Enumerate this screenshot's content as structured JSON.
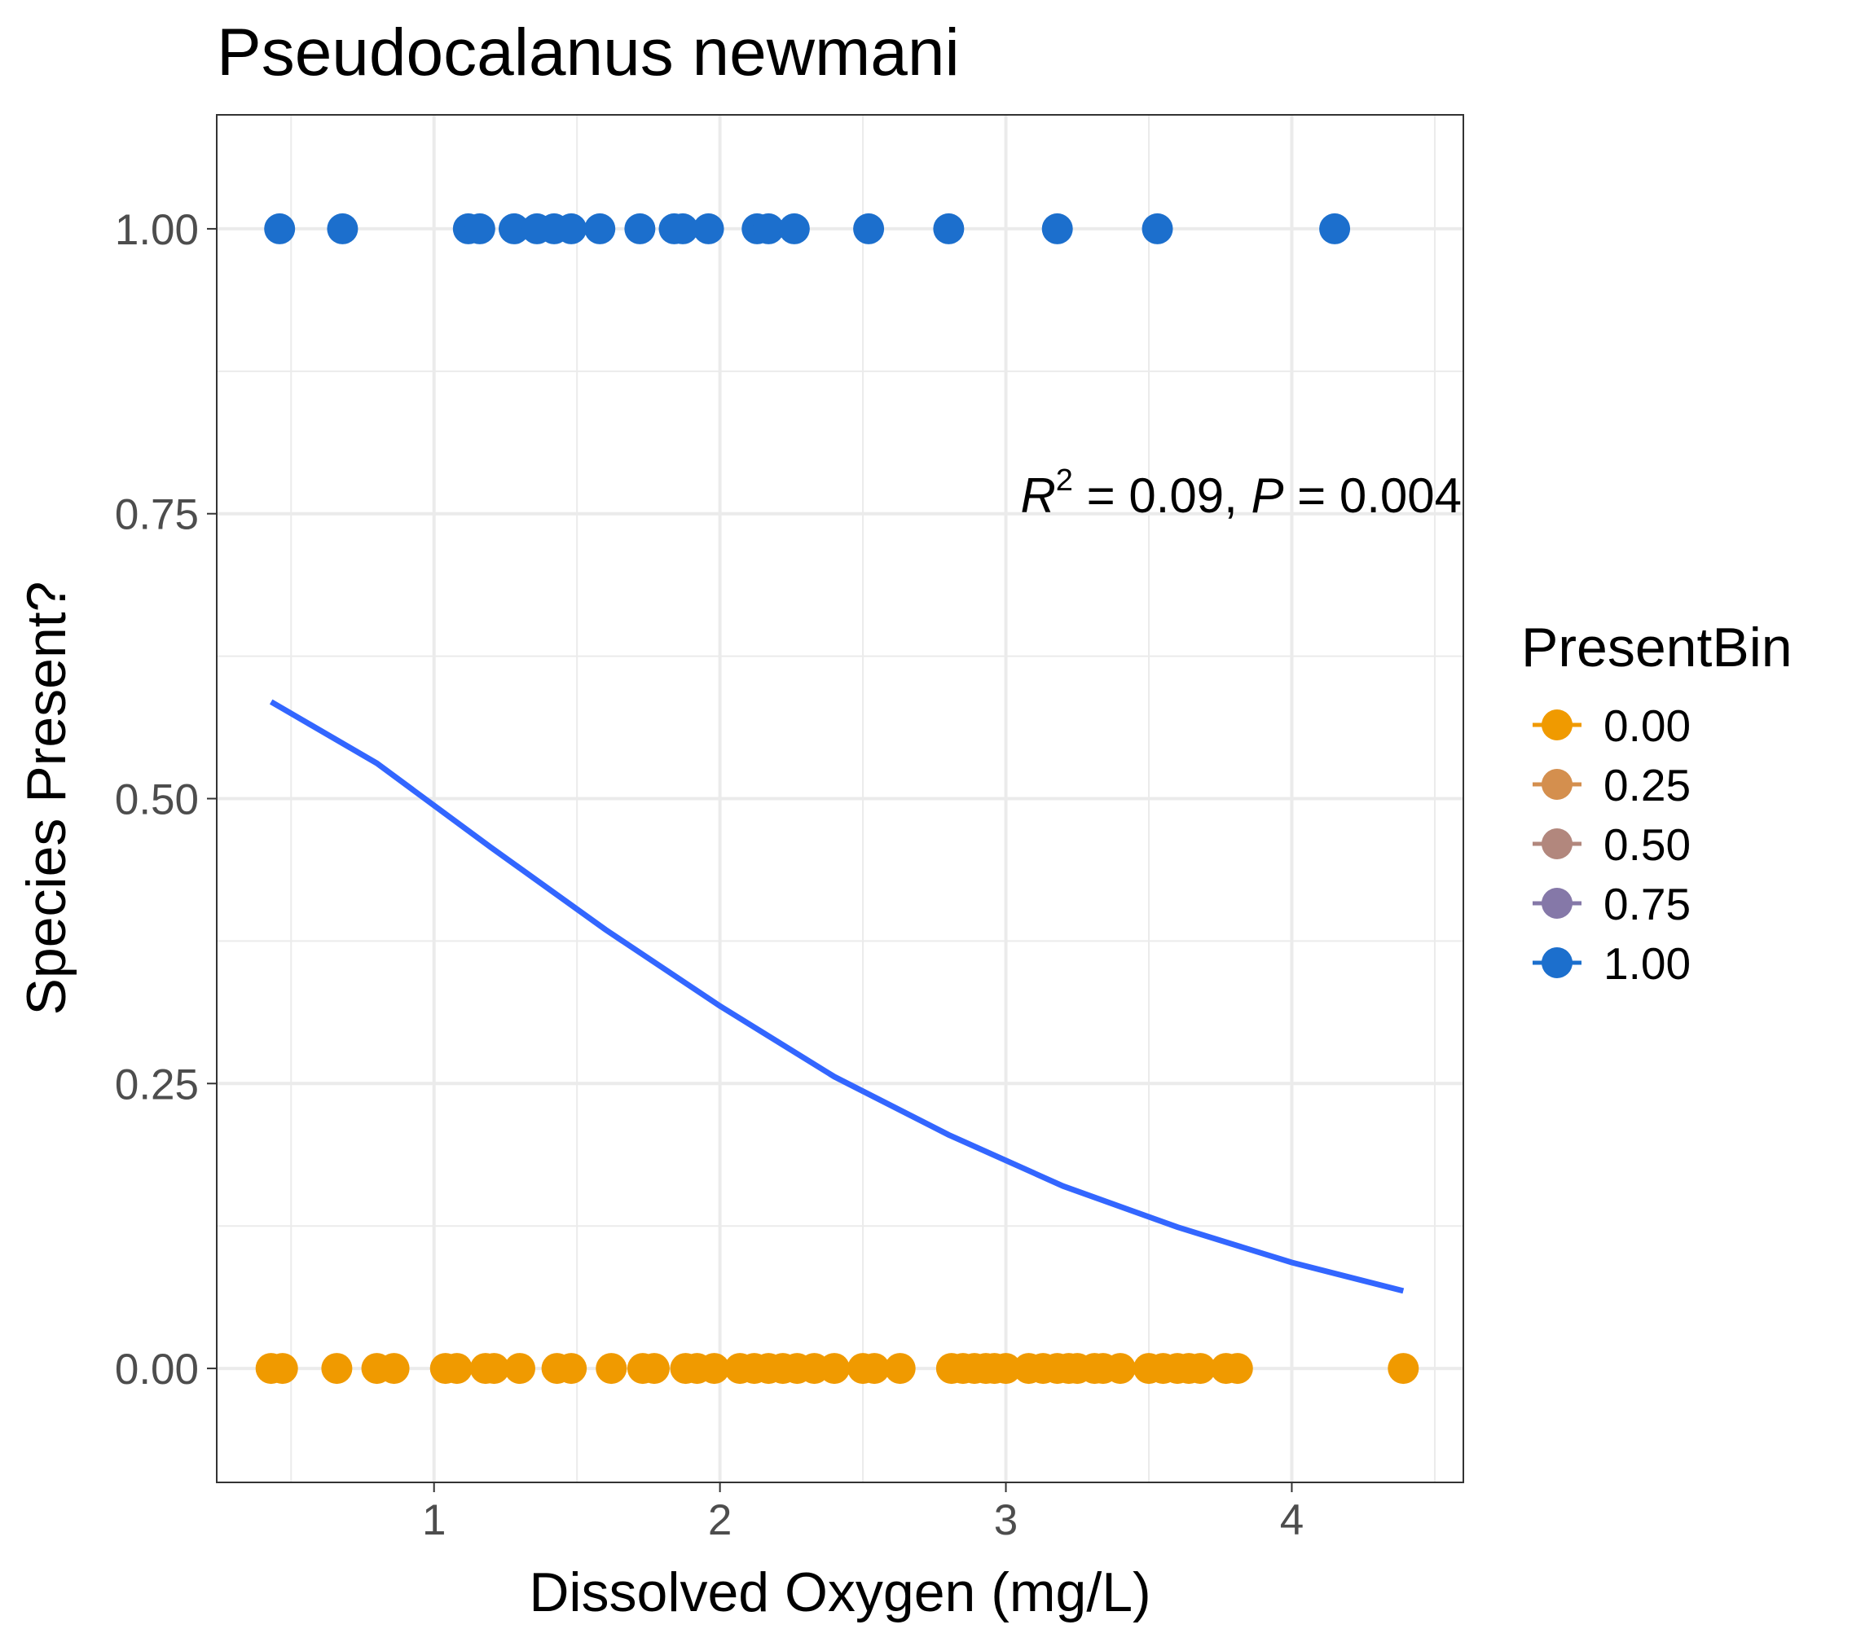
{
  "chart_data": {
    "type": "scatter",
    "title": "Pseudocalanus newmani",
    "xlabel": "Dissolved Oxygen (mg/L)",
    "ylabel": "Species Present?",
    "xlim": [
      0.24,
      4.6
    ],
    "ylim": [
      -0.1,
      1.1
    ],
    "x_ticks": [
      1,
      2,
      3,
      4
    ],
    "y_ticks": [
      0.0,
      0.25,
      0.5,
      0.75,
      1.0
    ],
    "x_tick_labels": [
      "1",
      "2",
      "3",
      "4"
    ],
    "y_tick_labels": [
      "0.00",
      "0.25",
      "0.50",
      "0.75",
      "1.00"
    ],
    "grid": true,
    "legend": {
      "title": "PresentBin",
      "placement": "right",
      "entries": [
        {
          "label": "0.00",
          "color": "#F09A00"
        },
        {
          "label": "0.25",
          "color": "#D48F4E"
        },
        {
          "label": "0.50",
          "color": "#B2877D"
        },
        {
          "label": "0.75",
          "color": "#8578A8"
        },
        {
          "label": "1.00",
          "color": "#1C6FCD"
        }
      ]
    },
    "annotation": {
      "r_symbol": "R",
      "sup": "2",
      "r_value": " = 0.09, ",
      "p_symbol": "P",
      "p_value": " = 0.004"
    },
    "series": [
      {
        "present": 0.0,
        "color": "#F09A00",
        "x": [
          0.43,
          0.47,
          0.66,
          0.8,
          0.86,
          1.04,
          1.08,
          1.18,
          1.21,
          1.3,
          1.43,
          1.48,
          1.62,
          1.73,
          1.77,
          1.88,
          1.92,
          1.98,
          2.07,
          2.12,
          2.17,
          2.22,
          2.27,
          2.33,
          2.4,
          2.5,
          2.54,
          2.63,
          2.81,
          2.85,
          2.89,
          2.93,
          2.96,
          3.0,
          3.08,
          3.13,
          3.18,
          3.22,
          3.25,
          3.31,
          3.34,
          3.4,
          3.5,
          3.55,
          3.6,
          3.64,
          3.68,
          3.77,
          3.81,
          4.39
        ],
        "y": [
          0,
          0,
          0,
          0,
          0,
          0,
          0,
          0,
          0,
          0,
          0,
          0,
          0,
          0,
          0,
          0,
          0,
          0,
          0,
          0,
          0,
          0,
          0,
          0,
          0,
          0,
          0,
          0,
          0,
          0,
          0,
          0,
          0,
          0,
          0,
          0,
          0,
          0,
          0,
          0,
          0,
          0,
          0,
          0,
          0,
          0,
          0,
          0,
          0,
          0
        ]
      },
      {
        "present": 1.0,
        "color": "#1C6FCD",
        "x": [
          0.46,
          0.68,
          1.12,
          1.16,
          1.28,
          1.36,
          1.42,
          1.48,
          1.58,
          1.72,
          1.84,
          1.87,
          1.96,
          2.13,
          2.17,
          2.26,
          2.52,
          2.8,
          3.18,
          3.53,
          4.15
        ],
        "y": [
          1,
          1,
          1,
          1,
          1,
          1,
          1,
          1,
          1,
          1,
          1,
          1,
          1,
          1,
          1,
          1,
          1,
          1,
          1,
          1,
          1
        ]
      }
    ],
    "fit_line": {
      "type": "logistic",
      "color": "#3366FF",
      "x": [
        0.43,
        0.8,
        1.2,
        1.6,
        2.0,
        2.4,
        2.8,
        3.2,
        3.6,
        4.0,
        4.39
      ],
      "y": [
        0.585,
        0.531,
        0.457,
        0.385,
        0.318,
        0.256,
        0.205,
        0.16,
        0.124,
        0.093,
        0.068
      ]
    }
  }
}
